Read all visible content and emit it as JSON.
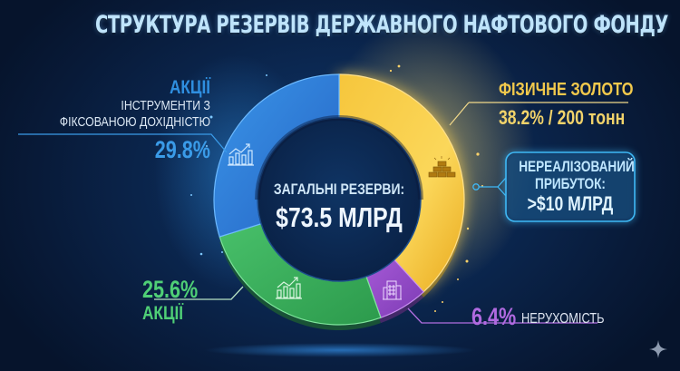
{
  "title": "СТРУКТУРА РЕЗЕРВІВ ДЕРЖАВНОГО НАФТОВОГО ФОНДУ",
  "center": {
    "label": "ЗАГАЛЬНІ РЕЗЕРВИ:",
    "value": "$73.5 МЛРД"
  },
  "labels": {
    "blue": {
      "title": "АКЦІЇ",
      "line1": "ІНСТРУМЕНТИ З",
      "line2": "ФІКСОВАНОЮ ДОХІДНІСТЮ",
      "value": "29.8%",
      "color": "#2f8fe0",
      "icon": "chart-growth-icon"
    },
    "gold": {
      "title": "ФІЗИЧНЕ ЗОЛОТО",
      "value": "38.2% / 200 тонн",
      "color": "#f2c94c",
      "icon": "gold-bars-icon"
    },
    "callout": {
      "line1": "НЕРЕАЛІЗОВАНИЙ",
      "line2": "ПРИБУТОК:",
      "line3": ">$10 МЛРД",
      "color": "#3fb8f5"
    },
    "green": {
      "value": "25.6%",
      "title": "АКЦІЇ",
      "color": "#3dbb63",
      "icon": "chart-growth-icon"
    },
    "purple": {
      "value": "6.4%",
      "title": "НЕРУХОМІСТЬ",
      "color": "#a45ad6",
      "icon": "building-icon"
    }
  },
  "chart_data": {
    "type": "pie",
    "subtype": "donut",
    "title": "СТРУКТУРА РЕЗЕРВІВ ДЕРЖАВНОГО НАФТОВОГО ФОНДУ",
    "center_text": "ЗАГАЛЬНІ РЕЗЕРВИ: $73.5 МЛРД",
    "total": 73.5,
    "total_unit": "млрд $",
    "categories": [
      "Фізичне золото",
      "Нерухомість",
      "Акції",
      "Акції / інструменти з фіксованою дохідністю"
    ],
    "values": [
      38.2,
      6.4,
      25.6,
      29.8
    ],
    "colors": [
      "#f0c23a",
      "#9b4fd0",
      "#36b058",
      "#2e7fd6"
    ],
    "annotations": [
      "38.2% / 200 тонн",
      "Нереалізований прибуток: >$10 млрд"
    ],
    "start_angle": "12 o'clock",
    "direction": "clockwise"
  }
}
